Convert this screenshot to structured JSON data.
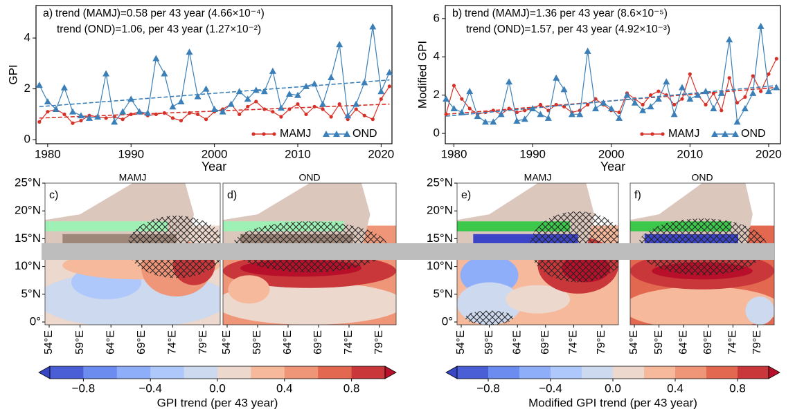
{
  "chart_data": [
    {
      "type": "line",
      "panel": "a)",
      "xlabel": "Year",
      "ylabel": "GPI",
      "annotations": [
        {
          "text": "trend (MAMJ)=0.58 per 43 year (4.66×10⁻⁴)",
          "color": "#d73027"
        },
        {
          "text": "trend (OND)=1.06, per 43 year (1.27×10⁻²)",
          "color": "#3a7fb8"
        }
      ],
      "x": [
        1979,
        1980,
        1981,
        1982,
        1983,
        1984,
        1985,
        1986,
        1987,
        1988,
        1989,
        1990,
        1991,
        1992,
        1993,
        1994,
        1995,
        1996,
        1997,
        1998,
        1999,
        2000,
        2001,
        2002,
        2003,
        2004,
        2005,
        2006,
        2007,
        2008,
        2009,
        2010,
        2011,
        2012,
        2013,
        2014,
        2015,
        2016,
        2017,
        2018,
        2019,
        2020,
        2021
      ],
      "series": [
        {
          "name": "MAMJ",
          "color": "#d73027",
          "marker": "circle",
          "values": [
            0.7,
            1.1,
            1.2,
            1.0,
            0.65,
            0.75,
            0.95,
            0.9,
            0.85,
            0.9,
            0.8,
            1.0,
            1.1,
            0.95,
            1.0,
            1.05,
            0.85,
            0.75,
            1.05,
            1.0,
            0.8,
            1.1,
            1.2,
            1.4,
            1.0,
            1.3,
            1.5,
            1.2,
            1.1,
            0.9,
            1.2,
            1.4,
            1.0,
            1.3,
            1.2,
            0.9,
            1.4,
            0.8,
            1.2,
            0.95,
            0.8,
            1.6,
            2.1
          ],
          "trend": {
            "x": [
              1979,
              2021
            ],
            "y": [
              0.85,
              1.4
            ]
          }
        },
        {
          "name": "OND",
          "color": "#3a7fb8",
          "marker": "triangle",
          "values": [
            2.15,
            1.5,
            1.2,
            2.05,
            1.1,
            0.95,
            0.85,
            0.9,
            2.6,
            0.7,
            1.1,
            1.6,
            1.1,
            1.05,
            3.2,
            2.6,
            1.3,
            1.5,
            3.45,
            1.7,
            2.0,
            1.2,
            1.1,
            1.4,
            1.9,
            1.6,
            1.95,
            1.9,
            2.7,
            1.25,
            1.8,
            1.75,
            2.1,
            2.2,
            1.4,
            2.45,
            3.75,
            0.95,
            1.4,
            2.25,
            4.45,
            1.9,
            2.65
          ],
          "trend": {
            "x": [
              1979,
              2021
            ],
            "y": [
              1.3,
              2.35
            ]
          }
        }
      ],
      "xlim": [
        1978.6,
        2021.3
      ],
      "xticks": [
        1980,
        1990,
        2000,
        2010,
        2020
      ],
      "ylim": [
        -0.16,
        5.28
      ],
      "yticks": [
        0,
        2,
        4
      ],
      "legend": "lower right"
    },
    {
      "type": "line",
      "panel": "b)",
      "xlabel": "Year",
      "ylabel": "Modified GPI",
      "annotations": [
        {
          "text": "trend (MAMJ)=1.36 per 43 year (8.6×10⁻⁵)",
          "color": "#d73027"
        },
        {
          "text": "trend (OND)=1.57, per 43 year (4.92×10⁻³)",
          "color": "#3a7fb8"
        }
      ],
      "x": [
        1979,
        1980,
        1981,
        1982,
        1983,
        1984,
        1985,
        1986,
        1987,
        1988,
        1989,
        1990,
        1991,
        1992,
        1993,
        1994,
        1995,
        1996,
        1997,
        1998,
        1999,
        2000,
        2001,
        2002,
        2003,
        2004,
        2005,
        2006,
        2007,
        2008,
        2009,
        2010,
        2011,
        2012,
        2013,
        2014,
        2015,
        2016,
        2017,
        2018,
        2019,
        2020,
        2021
      ],
      "series": [
        {
          "name": "MAMJ",
          "color": "#d73027",
          "marker": "circle",
          "values": [
            1.0,
            2.5,
            1.8,
            1.3,
            1.0,
            1.1,
            1.2,
            1.0,
            1.3,
            1.1,
            1.2,
            1.3,
            1.5,
            1.2,
            1.5,
            1.4,
            1.1,
            1.2,
            1.5,
            1.8,
            1.5,
            1.2,
            1.1,
            2.1,
            1.8,
            1.5,
            2.0,
            2.2,
            2.0,
            1.5,
            1.8,
            3.1,
            2.0,
            1.5,
            2.1,
            1.2,
            2.9,
            1.6,
            1.9,
            3.0,
            2.2,
            3.1,
            3.9
          ],
          "trend": {
            "x": [
              1979,
              2021
            ],
            "y": [
              1.0,
              2.4
            ]
          }
        },
        {
          "name": "OND",
          "color": "#3a7fb8",
          "marker": "triangle",
          "values": [
            1.8,
            1.3,
            1.1,
            2.2,
            0.9,
            0.6,
            0.6,
            1.0,
            2.7,
            0.65,
            0.75,
            1.3,
            1.0,
            0.8,
            2.9,
            2.3,
            1.0,
            1.0,
            4.3,
            1.3,
            1.6,
            1.3,
            0.8,
            2.0,
            1.6,
            1.2,
            1.4,
            1.8,
            2.7,
            1.0,
            2.4,
            1.8,
            2.0,
            2.2,
            1.3,
            2.1,
            4.9,
            0.6,
            1.3,
            2.1,
            5.6,
            2.2,
            2.4
          ],
          "trend": {
            "x": [
              1979,
              2021
            ],
            "y": [
              0.9,
              2.5
            ]
          }
        }
      ],
      "xlim": [
        1978.9,
        2021.5
      ],
      "xticks": [
        1980,
        1990,
        2000,
        2010,
        2020
      ],
      "ylim": [
        -0.54,
        6.68
      ],
      "yticks": [
        0,
        2,
        4,
        6
      ],
      "legend": "lower right"
    },
    {
      "type": "map",
      "panels": [
        {
          "label": "c)",
          "title": "MAMJ"
        },
        {
          "label": "d)",
          "title": "OND"
        }
      ],
      "ylim": [
        -0.5,
        25
      ],
      "yticks": [
        {
          "value": 25,
          "label": "25°N"
        },
        {
          "value": 20,
          "label": "20°N"
        },
        {
          "value": 15,
          "label": "15°N"
        },
        {
          "value": 10,
          "label": "10°N"
        },
        {
          "value": 5,
          "label": "5°N"
        },
        {
          "value": 0,
          "label": "0°"
        }
      ],
      "xticks": [
        {
          "value": 54,
          "label": "54°E"
        },
        {
          "value": 59,
          "label": "59°E"
        },
        {
          "value": 64,
          "label": "64°E"
        },
        {
          "value": 69,
          "label": "69°E"
        },
        {
          "value": 74,
          "label": "74°E"
        },
        {
          "value": 79,
          "label": "79°E"
        }
      ],
      "colorbar": {
        "label": "GPI trend (per 43 year)",
        "lim": [
          -1,
          1
        ],
        "ticks": [
          {
            "value": -0.8,
            "label": "−0.8"
          },
          {
            "value": -0.4,
            "label": "−0.4"
          },
          {
            "value": 0,
            "label": "0.0"
          },
          0.4,
          0.8
        ],
        "colors": [
          "#4a5fd6",
          "#6d8cf0",
          "#8eaefa",
          "#afc8fb",
          "#cdd9ef",
          "#ecd8cc",
          "#f6b99c",
          "#f09678",
          "#e2684f",
          "#c9373a"
        ],
        "extend_colors": [
          "#3847c4",
          "#b8102a"
        ]
      }
    },
    {
      "type": "map",
      "panels": [
        {
          "label": "e)",
          "title": "MAMJ"
        },
        {
          "label": "f)",
          "title": "OND"
        }
      ],
      "ylim": [
        -0.5,
        25
      ],
      "yticks": [
        {
          "value": 25,
          "label": "25°N"
        },
        {
          "value": 20,
          "label": "20°N"
        },
        {
          "value": 15,
          "label": "15°N"
        },
        {
          "value": 10,
          "label": "10°N"
        },
        {
          "value": 5,
          "label": "5°N"
        },
        {
          "value": 0,
          "label": "0°"
        }
      ],
      "xticks": [
        {
          "value": 54,
          "label": "54°E"
        },
        {
          "value": 59,
          "label": "59°E"
        },
        {
          "value": 64,
          "label": "64°E"
        },
        {
          "value": 69,
          "label": "69°E"
        },
        {
          "value": 74,
          "label": "74°E"
        },
        {
          "value": 79,
          "label": "79°E"
        }
      ],
      "colorbar": {
        "label": "Modified GPI trend (per 43 year)",
        "lim": [
          -1,
          1
        ],
        "ticks": [
          {
            "value": -0.8,
            "label": "−0.8"
          },
          {
            "value": -0.4,
            "label": "−0.4"
          },
          {
            "value": 0,
            "label": "0.0"
          },
          0.4,
          0.8
        ],
        "colors": [
          "#4a5fd6",
          "#6d8cf0",
          "#8eaefa",
          "#afc8fb",
          "#cdd9ef",
          "#ecd8cc",
          "#f6b99c",
          "#f09678",
          "#e2684f",
          "#c9373a"
        ],
        "extend_colors": [
          "#3847c4",
          "#b8102a"
        ]
      }
    }
  ]
}
